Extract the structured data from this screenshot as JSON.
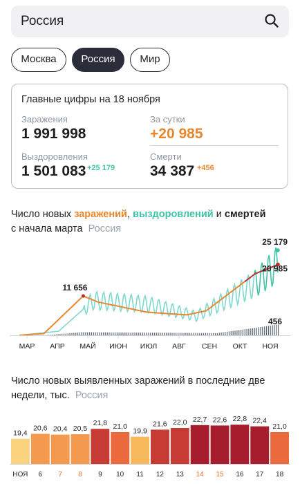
{
  "search": {
    "value": "Россия"
  },
  "tabs": [
    {
      "label": "Москва",
      "active": false
    },
    {
      "label": "Россия",
      "active": true
    },
    {
      "label": "Мир",
      "active": false
    }
  ],
  "summary": {
    "title": "Главные цифры на 18 ноября",
    "infected_label": "Заражения",
    "infected_value": "1 991 998",
    "day_label": "За сутки",
    "day_value": "+20 985",
    "recovered_label": "Выздоровления",
    "recovered_value": "1 501 083",
    "recovered_delta": "+25 179",
    "deaths_label": "Смерти",
    "deaths_value": "34 387",
    "deaths_delta": "+456"
  },
  "daily_chart": {
    "title_prefix": "Число новых ",
    "title_infections": "заражений",
    "title_sep": ", ",
    "title_recoveries": "выздоровлений",
    "title_and": " и ",
    "title_deaths": "смертей",
    "title_line2": "с начала марта",
    "title_region": "Россия"
  },
  "weekly_chart": {
    "title": "Число новых выявленных заражений в последние две недели, тыс.",
    "title_region": "Россия"
  },
  "colors": {
    "infections": "#e8872e",
    "infections_recent": "#b5312f",
    "recoveries": "#7fd8d0",
    "recoveries_recent": "#3fc3a6",
    "deaths": "#5a6472",
    "tab_active": "#2b2c3a"
  },
  "chart_data": [
    {
      "type": "line",
      "x": [
        "МАР",
        "АПР",
        "МАЙ",
        "ИЮН",
        "ИЮЛ",
        "АВГ",
        "СЕН",
        "ОКТ",
        "НОЯ"
      ],
      "series": [],
      "annotations": [
        {
          "label": "11 656",
          "value": 11656
        },
        {
          "label": "25 179",
          "value": 25179
        },
        {
          "label": "20 985",
          "value": 20985
        },
        {
          "label": "456",
          "value": 456
        }
      ]
    },
    {
      "type": "bar",
      "categories": [
        "НОЯ",
        "6",
        "7",
        "8",
        "9",
        "10",
        "11",
        "12",
        "13",
        "14",
        "15",
        "16",
        "17",
        "18"
      ],
      "highlight_categories": [
        "7",
        "8",
        "14",
        "15"
      ],
      "values": [
        19.4,
        20.6,
        20.4,
        20.5,
        21.8,
        21.0,
        19.9,
        21.6,
        22.0,
        22.7,
        22.6,
        22.8,
        22.4,
        21.0
      ],
      "labels": [
        "19,4",
        "20,6",
        "20,4",
        "20,5",
        "21,8",
        "21,0",
        "19,9",
        "21,6",
        "22,0",
        "22,7",
        "22,6",
        "22,8",
        "22,4",
        "21,0"
      ]
    }
  ]
}
